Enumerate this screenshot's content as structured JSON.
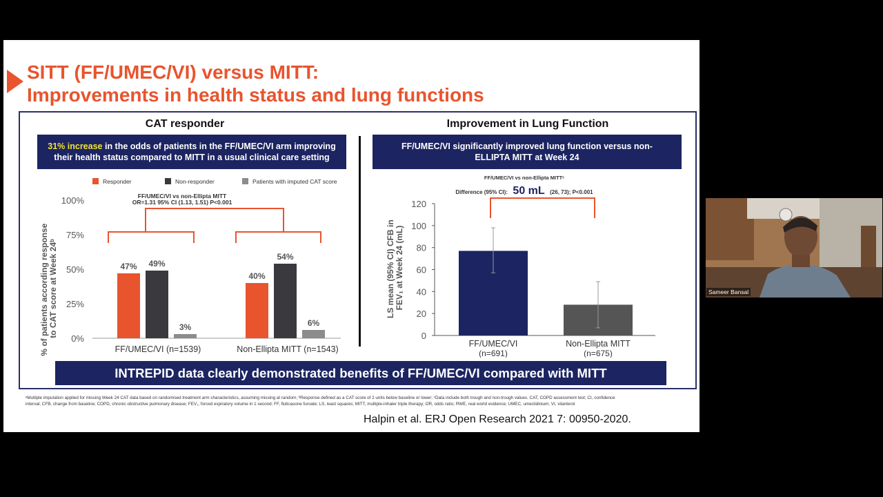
{
  "slide": {
    "title_line1": "SITT (FF/UMEC/VI) versus MITT:",
    "title_line2": "Improvements in health status and lung functions",
    "left_panel": {
      "heading": "CAT responder",
      "box_highlight": "31% increase",
      "box_text_rest": " in the odds of patients in the FF/UMEC/VI arm improving their health status compared to MITT in a usual clinical care setting"
    },
    "right_panel": {
      "heading": "Improvement in Lung Function",
      "box_text": "FF/UMEC/VI significantly improved lung function versus non-ELLIPTA MITT at Week 24"
    },
    "banner": "INTREPID data clearly demonstrated benefits of FF/UMEC/VI compared with MITT",
    "footnote": "ᵃMultiple imputation applied for missing Week 24 CAT data based on randomised treatment arm characteristics, assuming missing at random; ᵇResponse defined as a CAT score of 2 units below baseline or lower; ᶜData include both trough and non-trough values. CAT, COPD assessment test; CI, confidence interval; CFB, change from baseline; COPD, chronic obstructive pulmonary disease; FEV₁, forced expiratory volume in 1 second; FF, fluticasone furoate; LS, least squares; MITT, multiple-inhaler triple therapy; OR, odds ratio; RWE, real world evidence; UMEC, umeclidinium; VI, vilanterol",
    "citation": "Halpin et al. ERJ Open Research 2021 7: 00950-2020."
  },
  "video": {
    "participant_name": "Sameer Bansal"
  },
  "colors": {
    "accent": "#e8542e",
    "navy": "#1c2461",
    "dark_bar": "#3a3a3e",
    "grey_bar": "#8c8c8c",
    "highlight": "#f2e52b"
  },
  "chart_data": [
    {
      "type": "bar",
      "categories": [
        "FF/UMEC/VI (n=1539)",
        "Non-Ellipta MITT (n=1543)"
      ],
      "series": [
        {
          "name": "Responder",
          "values": [
            47,
            40
          ],
          "labels": [
            "47%",
            "40%"
          ]
        },
        {
          "name": "Non-responder",
          "values": [
            49,
            54
          ],
          "labels": [
            "49%",
            "54%"
          ]
        },
        {
          "name": "Patients with imputed CAT score",
          "values": [
            3,
            6
          ],
          "labels": [
            "3%",
            "6%"
          ]
        }
      ],
      "ylabel": "% of patients according response to CAT score at Week 24ᵇ",
      "ylim": [
        0,
        100
      ],
      "yticks": [
        "0%",
        "25%",
        "50%",
        "75%",
        "100%"
      ],
      "legend_position": "top",
      "annotation_line1": "FF/UMEC/VI vs non-Ellipta MITT",
      "annotation_line2": "OR=1.31 95% CI (1.13, 1.51) P<0.001"
    },
    {
      "type": "bar",
      "categories": [
        "FF/UMEC/VI",
        "Non-Ellipta MITT"
      ],
      "category_sub": [
        "(n=691)",
        "(n=675)"
      ],
      "values": [
        77,
        28
      ],
      "error_bars": [
        [
          57,
          98
        ],
        [
          7,
          49
        ]
      ],
      "ylabel_line1": "LS mean (95% CI) CFB in",
      "ylabel_line2": "FEV₁ at Week 24 (mL)",
      "ylim": [
        0,
        120
      ],
      "yticks": [
        "0",
        "20",
        "40",
        "60",
        "80",
        "100",
        "120"
      ],
      "annotation_line1": "FF/UMEC/VI vs non-Ellipta MITTᶜ",
      "annotation_prefix": "Difference (95% CI):",
      "annotation_value": "50 mL",
      "annotation_suffix": "(26, 73); P<0.001"
    }
  ]
}
